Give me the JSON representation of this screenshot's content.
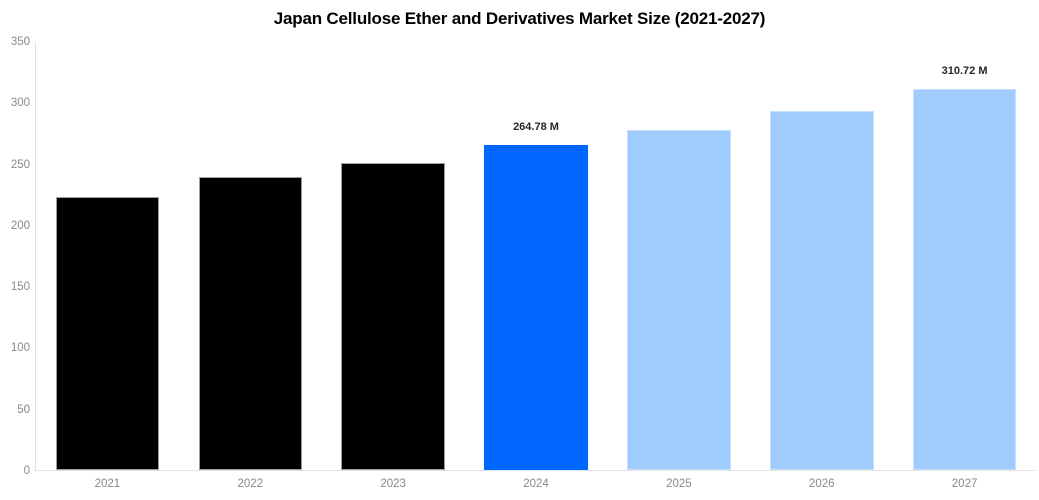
{
  "chart_data": {
    "type": "bar",
    "title": "Japan Cellulose Ether and Derivatives Market Size (2021-2027)",
    "categories": [
      "2021",
      "2022",
      "2023",
      "2024",
      "2025",
      "2026",
      "2027"
    ],
    "values": [
      223,
      239,
      250.5,
      264.78,
      277.5,
      293,
      310.72
    ],
    "bar_labels": [
      "",
      "",
      "",
      "264.78 M",
      "",
      "",
      "310.72 M"
    ],
    "bar_colors": [
      "#000000",
      "#000000",
      "#000000",
      "#0066ff",
      "#9fccfd",
      "#9fccfd",
      "#9fccfd"
    ],
    "bar_edge_colors": [
      "#9e9e9e",
      "#9e9e9e",
      "#9e9e9e",
      "#0066ff",
      "#c9e0fd",
      "#c9e0fd",
      "#c9e0fd"
    ],
    "xlabel": "",
    "ylabel": "",
    "ylim": [
      0,
      350
    ],
    "yticks": [
      0,
      50,
      100,
      150,
      200,
      250,
      300,
      350
    ],
    "grid": false,
    "legend": false,
    "colors": {
      "background": "#ffffff",
      "axis_line": "#e2e2e2",
      "tick_text": "#898989",
      "title_text": "#000000",
      "value_label_text": "#262626",
      "highlight_bar": "#0066ff",
      "forecast_bar": "#9fccfd",
      "history_bar": "#000000"
    }
  }
}
